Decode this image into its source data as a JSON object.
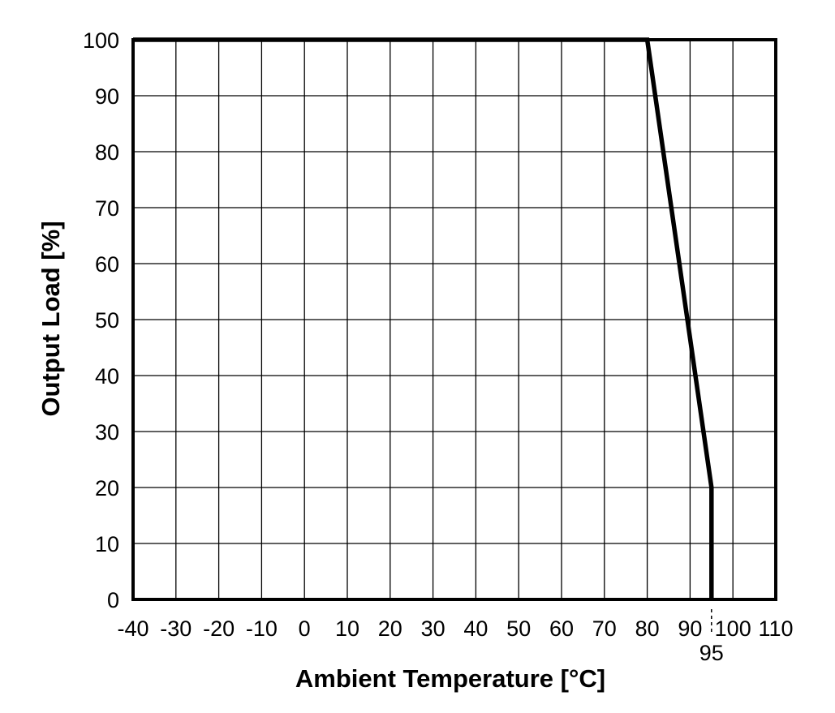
{
  "chart_data": {
    "type": "line",
    "title": "",
    "xlabel": "Ambient Temperature [°C]",
    "ylabel": "Output Load [%]",
    "xlim": [
      -40,
      110
    ],
    "ylim": [
      0,
      100
    ],
    "x_ticks": [
      -40,
      -30,
      -20,
      -10,
      0,
      10,
      20,
      30,
      40,
      50,
      60,
      70,
      80,
      90,
      100,
      110
    ],
    "x_tick_labels": [
      "-40",
      "-30",
      "-20",
      "-10",
      "0",
      "10",
      "20",
      "30",
      "40",
      "50",
      "60",
      "70",
      "80",
      "90",
      "100",
      "110"
    ],
    "y_ticks": [
      0,
      10,
      20,
      30,
      40,
      50,
      60,
      70,
      80,
      90,
      100
    ],
    "y_tick_labels": [
      "0",
      "10",
      "20",
      "30",
      "40",
      "50",
      "60",
      "70",
      "80",
      "90",
      "100"
    ],
    "grid": true,
    "annotations": [
      {
        "text": "95",
        "x": 95
      }
    ],
    "series": [
      {
        "x": [
          -40,
          80,
          95,
          95
        ],
        "y": [
          100,
          100,
          20,
          0
        ]
      }
    ],
    "colors": {
      "line": "#000000",
      "grid": "#000000",
      "frame": "#000000"
    }
  }
}
